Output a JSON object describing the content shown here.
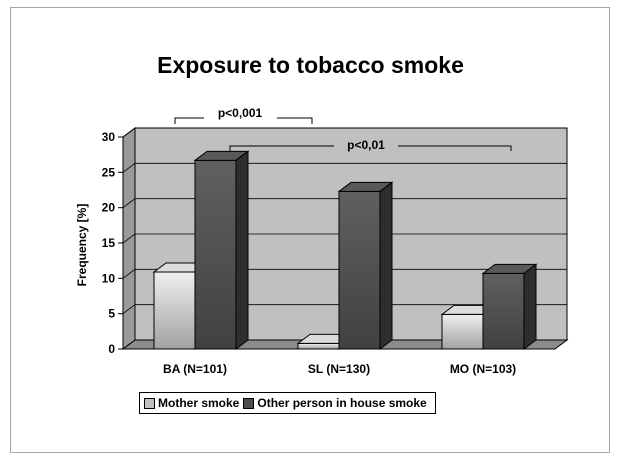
{
  "chart_data": {
    "type": "bar",
    "title": "Exposure to tobacco smoke",
    "ylabel": "Frequency [%]",
    "xlabel": "",
    "ylim": [
      0,
      30
    ],
    "yticks": [
      "0",
      "5",
      "10",
      "15",
      "20",
      "25",
      "30"
    ],
    "categories": [
      "BA (N=101)",
      "SL (N=130)",
      "MO (N=103)"
    ],
    "series": [
      {
        "name": "Mother smoke",
        "values": [
          10.9,
          0.8,
          4.9
        ],
        "color": "#bfbfbf"
      },
      {
        "name": "Other person in house smoke",
        "values": [
          26.7,
          22.3,
          10.7
        ],
        "color": "#4d4d4d"
      }
    ],
    "annotations": [
      {
        "text": "p<0,001"
      },
      {
        "text": "p<0,01"
      }
    ],
    "grid": true,
    "legend_position": "bottom"
  }
}
